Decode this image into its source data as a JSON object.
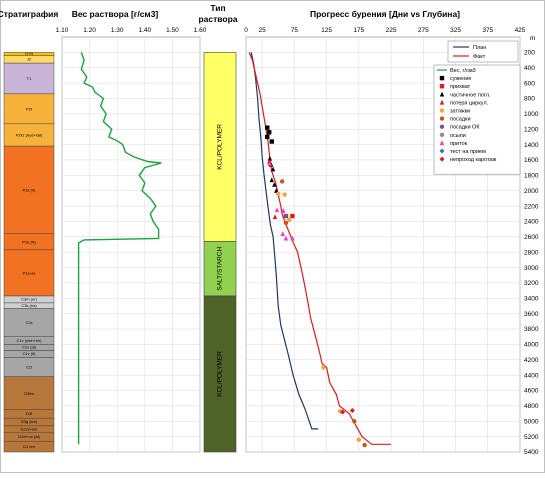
{
  "headers": {
    "strat": "Стратиграфия",
    "mud": "Вес раствора [г/см3]",
    "fluid_line1": "Тип",
    "fluid_line2": "раствора",
    "progress": "Прогресс бурения [Дни vs Глубина]",
    "depth_unit": "m"
  },
  "colors": {
    "plan": "#1f3864",
    "fact": "#e31a1c",
    "mud": "#1aa340",
    "kcl": "#ffff66",
    "salt": "#92d050",
    "kcl2": "#4f6228"
  },
  "strat_layers": [
    {
      "name": "Q+N",
      "top": 200,
      "bottom": 240,
      "color": "#ffc000"
    },
    {
      "name": "J2",
      "top": 240,
      "bottom": 340,
      "color": "#ffd966"
    },
    {
      "name": "T1",
      "top": 340,
      "bottom": 740,
      "color": "#c9b3d6"
    },
    {
      "name": "P2t",
      "top": 740,
      "bottom": 1130,
      "color": "#f7b23b"
    },
    {
      "name": "P2kz (hyd+kal)",
      "top": 1130,
      "bottom": 1420,
      "color": "#f7b23b"
    },
    {
      "name": "P1k (ir)",
      "top": 1420,
      "bottom": 2560,
      "color": "#f27224"
    },
    {
      "name": "P1k (fil)",
      "top": 2560,
      "bottom": 2770,
      "color": "#f27224"
    },
    {
      "name": "P1a-as",
      "top": 2770,
      "bottom": 3370,
      "color": "#f27224"
    },
    {
      "name": "C3m (ur)",
      "top": 3370,
      "bottom": 3460,
      "color": "#d0d0d0"
    },
    {
      "name": "C3k (ba)",
      "top": 3460,
      "bottom": 3530,
      "color": "#d0d0d0"
    },
    {
      "name": "C2s",
      "top": 3530,
      "bottom": 3900,
      "color": "#a6a6a6"
    },
    {
      "name": "C1v (mkh+kh)",
      "top": 3900,
      "bottom": 4000,
      "color": "#a6a6a6"
    },
    {
      "name": "C1v (al)",
      "top": 4000,
      "bottom": 4080,
      "color": "#a6a6a6"
    },
    {
      "name": "C1v (tl)",
      "top": 4080,
      "bottom": 4170,
      "color": "#a6a6a6"
    },
    {
      "name": "C1t",
      "top": 4170,
      "bottom": 4420,
      "color": "#a6a6a6"
    },
    {
      "name": "D3fm",
      "top": 4420,
      "bottom": 4850,
      "color": "#b7773a"
    },
    {
      "name": "D3f",
      "top": 4850,
      "bottom": 4960,
      "color": "#b7773a"
    },
    {
      "name": "D3g (sm)",
      "top": 4960,
      "bottom": 5060,
      "color": "#b7773a"
    },
    {
      "name": "D2zv+sm",
      "top": 5060,
      "bottom": 5150,
      "color": "#b7773a"
    },
    {
      "name": "D2ef+zv (al)",
      "top": 5150,
      "bottom": 5260,
      "color": "#b7773a"
    },
    {
      "name": "D1 em",
      "top": 5260,
      "bottom": 5400,
      "color": "#b7773a"
    }
  ],
  "fluid_types": [
    {
      "name": "KCL/POLYMER",
      "top": 200,
      "bottom": 2660,
      "color": "#ffff66"
    },
    {
      "name": "SALT/STARCH",
      "top": 2660,
      "bottom": 3370,
      "color": "#92d050"
    },
    {
      "name": "KCL/POLYMER",
      "top": 3370,
      "bottom": 5400,
      "color": "#4f6228"
    }
  ],
  "legend": {
    "plan": "План",
    "fact": "Факт",
    "mud": "Вес, г/см3",
    "events": [
      {
        "label": "сужение",
        "shape": "square",
        "color": "#000000"
      },
      {
        "label": "прихват",
        "shape": "square",
        "color": "#e31a1c"
      },
      {
        "label": "частичное погл.",
        "shape": "triangle",
        "color": "#000000"
      },
      {
        "label": "потеря циркул.",
        "shape": "triangle",
        "color": "#e31a1c"
      },
      {
        "label": "затяжки",
        "shape": "circle",
        "color": "#f4a442"
      },
      {
        "label": "посадки",
        "shape": "circle",
        "color": "#c55a11"
      },
      {
        "label": "посадки ОК",
        "shape": "circle",
        "color": "#6b5b95"
      },
      {
        "label": "осыпи",
        "shape": "circle",
        "color": "#8e8e8e"
      },
      {
        "label": "приток",
        "shape": "triangle",
        "color": "#ff33cc"
      },
      {
        "label": "тест на прием",
        "shape": "diamond",
        "color": "#2e75b6"
      },
      {
        "label": "непроход каротаж",
        "shape": "diamond",
        "color": "#e31a1c"
      }
    ]
  },
  "chart_data": [
    {
      "type": "line",
      "title": "Вес раствора [г/см3]",
      "xlim": [
        1.1,
        1.6
      ],
      "ylim": [
        5400,
        0
      ],
      "xticks": [
        "1.10",
        "1.20",
        "1.30",
        "1.40",
        "1.50",
        "1.60"
      ],
      "yticks": [
        200,
        400,
        600,
        800,
        1000,
        1200,
        1400,
        1600,
        1800,
        2000,
        2200,
        2400,
        2600,
        2800,
        3000,
        3200,
        3400,
        3600,
        3800,
        4000,
        4200,
        4400,
        4600,
        4800,
        5000,
        5200,
        5400
      ],
      "series": [
        {
          "name": "Вес, г/см3",
          "points": [
            [
              1.17,
              200
            ],
            [
              1.18,
              300
            ],
            [
              1.17,
              420
            ],
            [
              1.19,
              520
            ],
            [
              1.18,
              600
            ],
            [
              1.21,
              650
            ],
            [
              1.22,
              720
            ],
            [
              1.25,
              800
            ],
            [
              1.24,
              900
            ],
            [
              1.26,
              1000
            ],
            [
              1.25,
              1100
            ],
            [
              1.28,
              1200
            ],
            [
              1.27,
              1300
            ],
            [
              1.3,
              1350
            ],
            [
              1.32,
              1400
            ],
            [
              1.33,
              1500
            ],
            [
              1.36,
              1560
            ],
            [
              1.41,
              1620
            ],
            [
              1.46,
              1640
            ],
            [
              1.4,
              1700
            ],
            [
              1.38,
              1800
            ],
            [
              1.4,
              1900
            ],
            [
              1.39,
              2000
            ],
            [
              1.42,
              2100
            ],
            [
              1.44,
              2200
            ],
            [
              1.42,
              2300
            ],
            [
              1.43,
              2400
            ],
            [
              1.45,
              2500
            ],
            [
              1.45,
              2620
            ],
            [
              1.18,
              2640
            ],
            [
              1.16,
              2680
            ],
            [
              1.16,
              5300
            ]
          ]
        }
      ]
    },
    {
      "type": "line",
      "title": "Прогресс бурения [Дни vs Глубина]",
      "xlim": [
        0,
        425
      ],
      "ylim": [
        5400,
        0
      ],
      "xticks": [
        0,
        25,
        75,
        125,
        175,
        225,
        275,
        325,
        375,
        425
      ],
      "yticks": [
        200,
        400,
        600,
        800,
        1000,
        1200,
        1400,
        1600,
        1800,
        2000,
        2200,
        2400,
        2600,
        2800,
        3000,
        3200,
        3400,
        3600,
        3800,
        4000,
        4200,
        4400,
        4600,
        4800,
        5000,
        5200,
        5400
      ],
      "series": [
        {
          "name": "План",
          "points": [
            [
              8,
              200
            ],
            [
              12,
              350
            ],
            [
              15,
              550
            ],
            [
              18,
              800
            ],
            [
              20,
              1050
            ],
            [
              23,
              1300
            ],
            [
              25,
              1550
            ],
            [
              28,
              1800
            ],
            [
              31,
              2000
            ],
            [
              34,
              2200
            ],
            [
              38,
              2450
            ],
            [
              42,
              2600
            ],
            [
              44,
              2800
            ],
            [
              47,
              3100
            ],
            [
              50,
              3500
            ],
            [
              54,
              3750
            ],
            [
              60,
              3950
            ],
            [
              66,
              4150
            ],
            [
              73,
              4400
            ],
            [
              82,
              4650
            ],
            [
              92,
              4850
            ],
            [
              102,
              5100
            ],
            [
              112,
              5100
            ]
          ]
        },
        {
          "name": "Факт",
          "points": [
            [
              5,
              200
            ],
            [
              10,
              300
            ],
            [
              14,
              450
            ],
            [
              18,
              600
            ],
            [
              22,
              750
            ],
            [
              25,
              900
            ],
            [
              28,
              1050
            ],
            [
              31,
              1200
            ],
            [
              34,
              1350
            ],
            [
              36,
              1500
            ],
            [
              38,
              1650
            ],
            [
              40,
              1750
            ],
            [
              46,
              1900
            ],
            [
              50,
              2050
            ],
            [
              54,
              2200
            ],
            [
              56,
              2300
            ],
            [
              60,
              2400
            ],
            [
              65,
              2500
            ],
            [
              72,
              2650
            ],
            [
              80,
              2800
            ],
            [
              88,
              3100
            ],
            [
              95,
              3400
            ],
            [
              100,
              3650
            ],
            [
              108,
              3900
            ],
            [
              114,
              4100
            ],
            [
              118,
              4250
            ],
            [
              125,
              4300
            ],
            [
              130,
              4500
            ],
            [
              140,
              4650
            ],
            [
              145,
              4800
            ],
            [
              160,
              4900
            ],
            [
              170,
              5050
            ],
            [
              180,
              5200
            ],
            [
              195,
              5300
            ],
            [
              225,
              5300
            ]
          ]
        }
      ],
      "events": [
        {
          "type": "сужение",
          "points": [
            [
              33,
              1180
            ],
            [
              36,
              1240
            ],
            [
              33,
              1300
            ],
            [
              40,
              1360
            ]
          ]
        },
        {
          "type": "частичное погл.",
          "points": [
            [
              37,
              1580
            ],
            [
              39,
              1660
            ],
            [
              42,
              1720
            ],
            [
              40,
              1860
            ],
            [
              44,
              1920
            ],
            [
              47,
              2000
            ]
          ]
        },
        {
          "type": "потеря циркул.",
          "points": [
            [
              36,
              1620
            ],
            [
              45,
              2340
            ]
          ]
        },
        {
          "type": "приток",
          "points": [
            [
              37,
              1650
            ],
            [
              48,
              2250
            ],
            [
              58,
              2260
            ],
            [
              57,
              2560
            ],
            [
              62,
              2620
            ],
            [
              72,
              2620
            ]
          ]
        },
        {
          "type": "прихват",
          "points": [
            [
              62,
              2330
            ],
            [
              72,
              2330
            ]
          ]
        },
        {
          "type": "затяжки",
          "points": [
            [
              50,
              2040
            ],
            [
              60,
              2050
            ],
            [
              67,
              2380
            ],
            [
              120,
              4300
            ],
            [
              146,
              4870
            ],
            [
              175,
              5240
            ]
          ]
        },
        {
          "type": "посадки",
          "points": [
            [
              56,
              1880
            ],
            [
              62,
              2420
            ],
            [
              168,
              5000
            ],
            [
              184,
              5310
            ]
          ]
        },
        {
          "type": "посадки ОК",
          "points": [
            [
              62,
              2330
            ]
          ]
        },
        {
          "type": "непроход каротаж",
          "points": [
            [
              150,
              4880
            ],
            [
              165,
              4860
            ]
          ]
        }
      ]
    }
  ]
}
